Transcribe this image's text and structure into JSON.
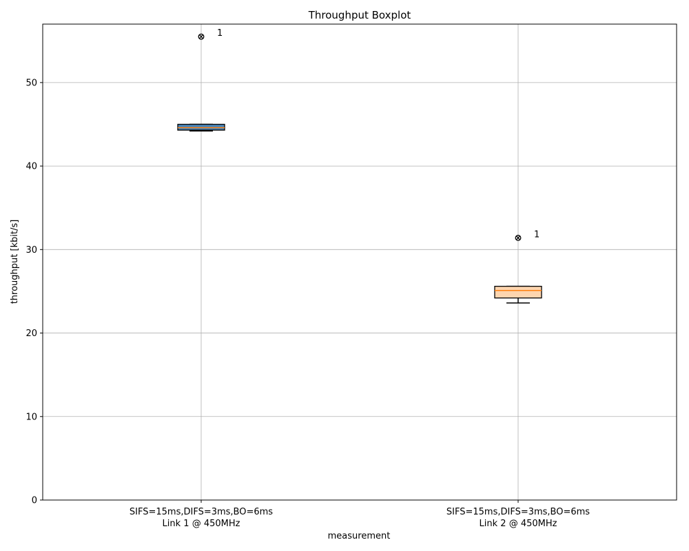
{
  "chart_data": {
    "type": "boxplot",
    "title": "Throughput Boxplot",
    "xlabel": "measurement",
    "ylabel": "throughput [kbit/s]",
    "ylim": [
      0,
      57
    ],
    "yticks": [
      0,
      10,
      20,
      30,
      40,
      50
    ],
    "grid": true,
    "categories": [
      [
        "SIFS=15ms,DIFS=3ms,BO=6ms",
        "Link 1 @ 450MHz"
      ],
      [
        "SIFS=15ms,DIFS=3ms,BO=6ms",
        "Link 2 @ 450MHz"
      ]
    ],
    "boxes": [
      {
        "whisker_low": 44.2,
        "q1": 44.3,
        "median": 44.6,
        "q3": 45.0,
        "whisker_high": 45.0,
        "fill": "#4a84b6",
        "outliers": [
          55.5
        ],
        "outlier_label": "1"
      },
      {
        "whisker_low": 23.6,
        "q1": 24.2,
        "median": 25.1,
        "q3": 25.6,
        "whisker_high": 25.6,
        "fill": "#fdd5af",
        "outliers": [
          31.4
        ],
        "outlier_label": "1"
      }
    ],
    "colors": {
      "median": "#ff7f0e",
      "box_edge": "#000000",
      "grid": "#b0b0b0"
    }
  }
}
